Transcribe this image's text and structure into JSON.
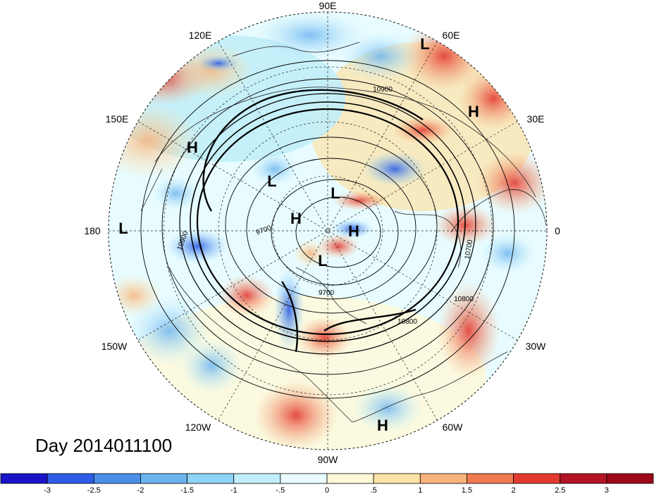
{
  "title": "Day 2014011100",
  "longitude_labels": [
    "90E",
    "60E",
    "30E",
    "0",
    "30W",
    "60W",
    "90W",
    "120W",
    "150W",
    "180",
    "150E",
    "120E"
  ],
  "pressure_centers": [
    "L",
    "H",
    "H",
    "L",
    "L",
    "L",
    "H",
    "H",
    "L",
    "H"
  ],
  "contour_labels": [
    "10900",
    "10900",
    "9700",
    "9700",
    "10700",
    "10800",
    "10800"
  ],
  "colorbar": {
    "tick_labels": [
      "-3",
      "-2.5",
      "-2",
      "-1.5",
      "-1",
      "-.5",
      "0",
      ".5",
      "1",
      "1.5",
      "2",
      "2.5",
      "3"
    ],
    "colors": [
      "#1a14c8",
      "#2d5de6",
      "#4a90ea",
      "#6cb4f0",
      "#8fd3f5",
      "#c1eefa",
      "#e8fcff",
      "#fff9d8",
      "#fde3a6",
      "#f8b27c",
      "#f17a52",
      "#e33a30",
      "#b31424",
      "#9c0a1a"
    ]
  }
}
